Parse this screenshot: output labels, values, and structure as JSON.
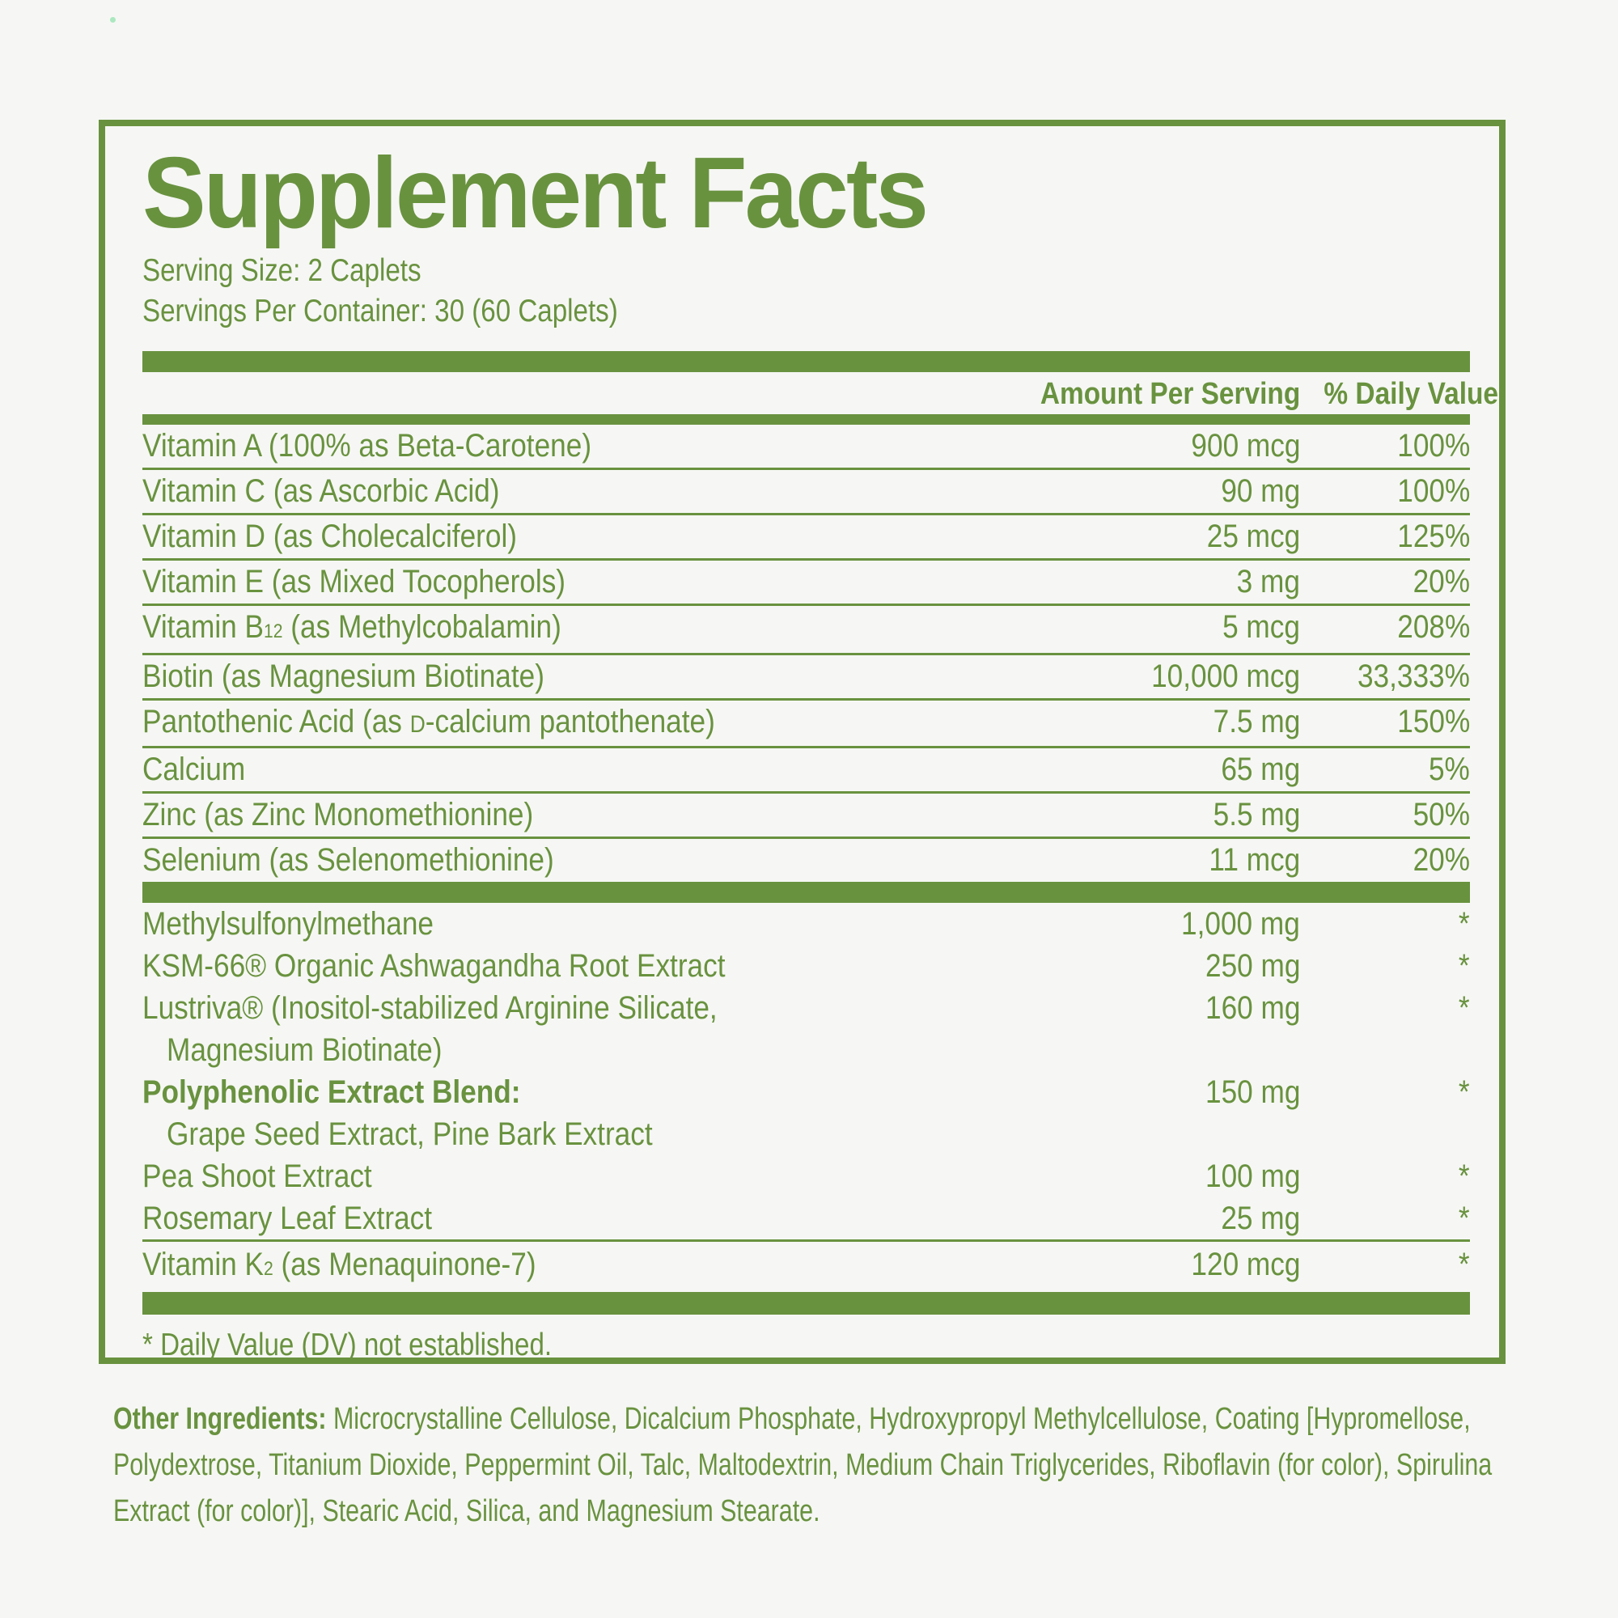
{
  "accent_color": "#69923f",
  "background_color": "#f6f7f4",
  "panel": {
    "title": "Supplement Facts",
    "serving_size": "Serving Size: 2 Caplets",
    "servings_per_container": "Servings Per Container: 30 (60 Caplets)",
    "columns": {
      "amount": "Amount Per Serving",
      "daily_value": "% Daily Value"
    },
    "section1": [
      {
        "parts": [
          {
            "text": "Vitamin A (100% as Beta-Carotene)"
          }
        ],
        "amount": "900 mcg",
        "dv": "100%"
      },
      {
        "parts": [
          {
            "text": "Vitamin C (as Ascorbic Acid)"
          }
        ],
        "amount": "90 mg",
        "dv": "100%"
      },
      {
        "parts": [
          {
            "text": "Vitamin D (as Cholecalciferol)"
          }
        ],
        "amount": "25 mcg",
        "dv": "125%"
      },
      {
        "parts": [
          {
            "text": "Vitamin E (as Mixed Tocopherols)"
          }
        ],
        "amount": "3 mg",
        "dv": "20%"
      },
      {
        "parts": [
          {
            "text": "Vitamin B"
          },
          {
            "text": "12",
            "style": "sub"
          },
          {
            "text": " (as Methylcobalamin)"
          }
        ],
        "amount": "5 mcg",
        "dv": "208%"
      },
      {
        "parts": [
          {
            "text": "Biotin (as Magnesium Biotinate)"
          }
        ],
        "amount": "10,000 mcg",
        "dv": "33,333%"
      },
      {
        "parts": [
          {
            "text": "Pantothenic Acid (as "
          },
          {
            "text": "D",
            "style": "smallcap"
          },
          {
            "text": "-calcium pantothenate)"
          }
        ],
        "amount": "7.5 mg",
        "dv": "150%"
      },
      {
        "parts": [
          {
            "text": "Calcium"
          }
        ],
        "amount": "65 mg",
        "dv": "5%"
      },
      {
        "parts": [
          {
            "text": "Zinc (as Zinc Monomethionine)"
          }
        ],
        "amount": "5.5 mg",
        "dv": "50%"
      },
      {
        "parts": [
          {
            "text": "Selenium (as Selenomethionine)"
          }
        ],
        "amount": "11 mcg",
        "dv": "20%"
      }
    ],
    "section2": [
      {
        "parts": [
          {
            "text": "Methylsulfonylmethane"
          }
        ],
        "amount": "1,000 mg",
        "dv": "*"
      },
      {
        "parts": [
          {
            "text": "KSM-66® Organic Ashwagandha Root Extract"
          }
        ],
        "amount": "250 mg",
        "dv": "*"
      },
      {
        "parts": [
          {
            "text": "Lustriva® (Inositol-stabilized Arginine Silicate,"
          }
        ],
        "amount": "160 mg",
        "dv": "*"
      },
      {
        "parts": [
          {
            "text": "Magnesium Biotinate)"
          }
        ],
        "indent": true,
        "amount": "",
        "dv": ""
      },
      {
        "parts": [
          {
            "text": "Polyphenolic Extract Blend:"
          }
        ],
        "bold": true,
        "amount": "150 mg",
        "dv": "*"
      },
      {
        "parts": [
          {
            "text": "Grape Seed Extract, Pine Bark Extract"
          }
        ],
        "indent": true,
        "amount": "",
        "dv": ""
      },
      {
        "parts": [
          {
            "text": "Pea Shoot Extract"
          }
        ],
        "amount": "100 mg",
        "dv": "*"
      },
      {
        "parts": [
          {
            "text": "Rosemary Leaf Extract"
          }
        ],
        "amount": "25 mg",
        "dv": "*"
      }
    ],
    "vitamin_k_row": [
      {
        "parts": [
          {
            "text": "Vitamin K"
          },
          {
            "text": "2",
            "style": "sub"
          },
          {
            "text": " (as Menaquinone-7)"
          }
        ],
        "amount": "120 mcg",
        "dv": "*"
      }
    ],
    "footnote": "* Daily Value (DV) not established."
  },
  "other_ingredients": {
    "label": "Other Ingredients:",
    "text": " Microcrystalline Cellulose, Dicalcium Phosphate, Hydroxypropyl Methylcellulose, Coating [Hypromellose, Polydextrose, Titanium Dioxide, Peppermint Oil, Talc, Maltodextrin, Medium Chain Triglycerides, Riboflavin (for color), Spirulina Extract (for color)], Stearic Acid, Silica, and Magnesium Stearate."
  }
}
